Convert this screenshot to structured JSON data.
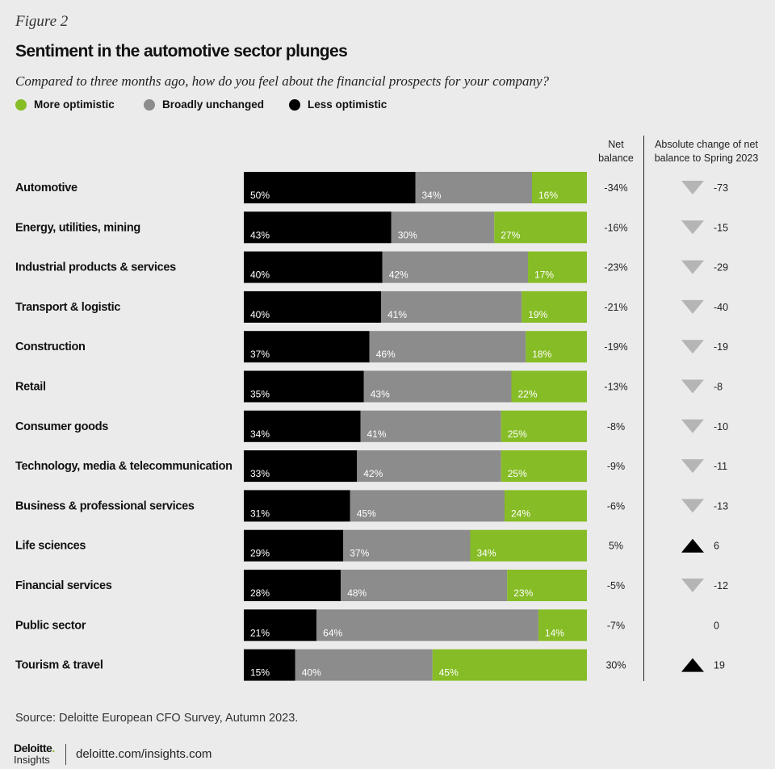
{
  "figure_label": "Figure 2",
  "title": "Sentiment in the automotive sector plunges",
  "subtitle": "Compared to three months ago, how do you feel about the financial prospects for your company?",
  "legend": [
    {
      "label": "More optimistic",
      "color": "#86bc25"
    },
    {
      "label": "Broadly unchanged",
      "color": "#8c8c8c"
    },
    {
      "label": "Less optimistic",
      "color": "#000000"
    }
  ],
  "columns": {
    "net_balance": "Net balance",
    "absolute_change": "Absolute change of net balance to Spring 2023"
  },
  "source": "Source: Deloitte European CFO Survey, Autumn 2023.",
  "footer": {
    "logo_name": "Deloitte",
    "logo_dot": ".",
    "logo_sub": "Insights",
    "url": "deloitte.com/insights.com"
  },
  "chart_data": {
    "type": "bar",
    "orientation": "horizontal-stacked-100",
    "categories": [
      "Automotive",
      "Energy, utilities, mining",
      "Industrial products & services",
      "Transport & logistic",
      "Construction",
      "Retail",
      "Consumer goods",
      "Technology, media & telecommunication",
      "Business & professional services",
      "Life sciences",
      "Financial services",
      "Public sector",
      "Tourism & travel"
    ],
    "series": [
      {
        "name": "Less optimistic",
        "color": "#000000",
        "values": [
          50,
          43,
          40,
          40,
          37,
          35,
          34,
          33,
          31,
          29,
          28,
          21,
          15
        ]
      },
      {
        "name": "Broadly unchanged",
        "color": "#8c8c8c",
        "values": [
          34,
          30,
          42,
          41,
          46,
          43,
          41,
          42,
          45,
          37,
          48,
          64,
          40
        ]
      },
      {
        "name": "More optimistic",
        "color": "#86bc25",
        "values": [
          16,
          27,
          17,
          19,
          18,
          22,
          25,
          25,
          24,
          34,
          23,
          14,
          45
        ]
      }
    ],
    "net_balance": [
      "-34%",
      "-16%",
      "-23%",
      "-21%",
      "-19%",
      "-13%",
      "-8%",
      "-9%",
      "-6%",
      "5%",
      "-5%",
      "-7%",
      "30%"
    ],
    "absolute_change": [
      -73,
      -15,
      -29,
      -40,
      -19,
      -8,
      -10,
      -11,
      -13,
      6,
      -12,
      0,
      19
    ],
    "change_marker_colors": {
      "down": "#b5b5b5",
      "up": "#000000"
    }
  }
}
